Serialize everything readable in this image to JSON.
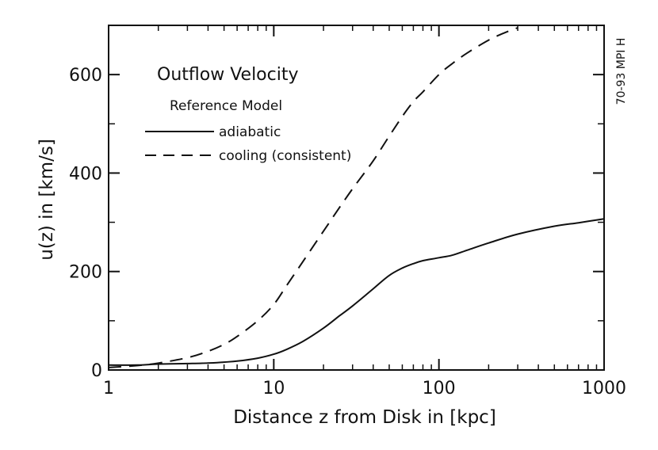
{
  "chart_data": {
    "type": "line",
    "title": "Outflow Velocity",
    "xlabel": "Distance z from Disk in [kpc]",
    "ylabel": "u(z) in [km/s]",
    "x_scale": "log",
    "xlim": [
      1,
      1000
    ],
    "ylim": [
      0,
      700
    ],
    "x_ticks": [
      1,
      10,
      100,
      1000
    ],
    "x_tick_labels": [
      "1",
      "10",
      "100",
      "1000"
    ],
    "y_ticks": [
      0,
      200,
      400,
      600
    ],
    "y_tick_labels": [
      "0",
      "200",
      "400",
      "600"
    ],
    "grid": false,
    "legend_title": "Reference Model",
    "legend_position": "top-left",
    "side_note": "70-93 MPI H",
    "series": [
      {
        "name": "adiabatic",
        "style": "solid",
        "color": "#111111",
        "x": [
          1,
          1.5,
          2,
          3,
          4,
          5,
          6,
          8,
          10,
          12,
          15,
          20,
          25,
          30,
          40,
          50,
          60,
          70,
          80,
          100,
          120,
          150,
          200,
          300,
          500,
          700,
          1000
        ],
        "y": [
          10,
          10,
          12,
          13,
          14,
          16,
          18,
          24,
          32,
          42,
          58,
          85,
          110,
          130,
          165,
          192,
          207,
          216,
          222,
          228,
          233,
          244,
          258,
          276,
          292,
          299,
          307
        ]
      },
      {
        "name": "cooling (consistent)",
        "style": "dashed",
        "color": "#111111",
        "x": [
          1,
          1.5,
          2,
          3,
          4,
          5,
          6,
          8,
          10,
          12,
          15,
          20,
          25,
          30,
          40,
          50,
          60,
          70,
          80,
          100,
          120,
          150,
          200,
          250,
          300
        ],
        "y": [
          5,
          9,
          14,
          25,
          38,
          52,
          68,
          100,
          133,
          172,
          220,
          282,
          330,
          368,
          425,
          475,
          515,
          545,
          565,
          600,
          622,
          645,
          670,
          685,
          695
        ]
      }
    ]
  }
}
